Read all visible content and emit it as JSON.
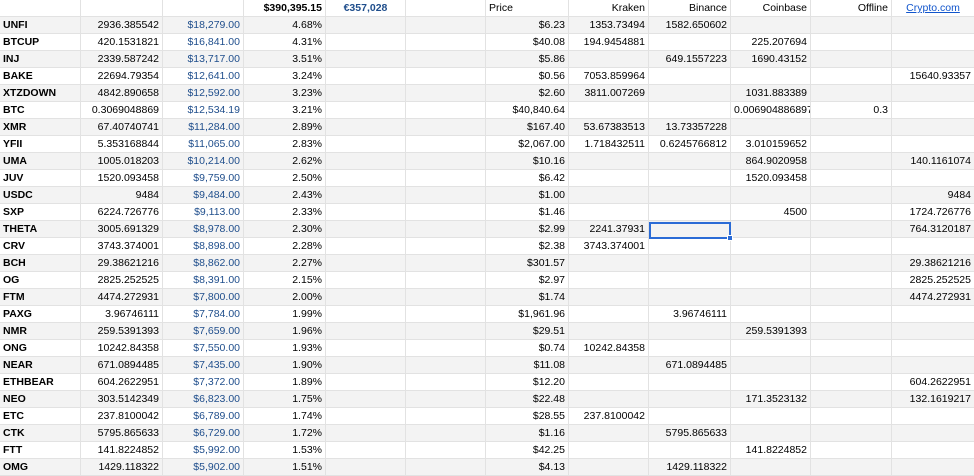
{
  "header": {
    "total_usd": "$390,395.15",
    "total_eur": "€357,028",
    "price": "Price",
    "kraken": "Kraken",
    "binance": "Binance",
    "coinbase": "Coinbase",
    "offline": "Offline",
    "cryptocom": "Crypto.com"
  },
  "rows": [
    {
      "sym": "UNFI",
      "qty": "2936.385542",
      "usd": "$18,279.00",
      "pct": "4.68%",
      "price": "$6.23",
      "kraken": "1353.73494",
      "binance": "1582.650602",
      "coinbase": "",
      "offline": "",
      "cryptocom": ""
    },
    {
      "sym": "BTCUP",
      "qty": "420.1531821",
      "usd": "$16,841.00",
      "pct": "4.31%",
      "price": "$40.08",
      "kraken": "194.9454881",
      "binance": "",
      "coinbase": "225.207694",
      "offline": "",
      "cryptocom": ""
    },
    {
      "sym": "INJ",
      "qty": "2339.587242",
      "usd": "$13,717.00",
      "pct": "3.51%",
      "price": "$5.86",
      "kraken": "",
      "binance": "649.1557223",
      "coinbase": "1690.43152",
      "offline": "",
      "cryptocom": ""
    },
    {
      "sym": "BAKE",
      "qty": "22694.79354",
      "usd": "$12,641.00",
      "pct": "3.24%",
      "price": "$0.56",
      "kraken": "7053.859964",
      "binance": "",
      "coinbase": "",
      "offline": "",
      "cryptocom": "15640.93357"
    },
    {
      "sym": "XTZDOWN",
      "qty": "4842.890658",
      "usd": "$12,592.00",
      "pct": "3.23%",
      "price": "$2.60",
      "kraken": "3811.007269",
      "binance": "",
      "coinbase": "1031.883389",
      "offline": "",
      "cryptocom": ""
    },
    {
      "sym": "BTC",
      "qty": "0.3069048869",
      "usd": "$12,534.19",
      "pct": "3.21%",
      "price": "$40,840.64",
      "kraken": "",
      "binance": "",
      "coinbase": "0.006904886897",
      "offline": "0.3",
      "cryptocom": ""
    },
    {
      "sym": "XMR",
      "qty": "67.40740741",
      "usd": "$11,284.00",
      "pct": "2.89%",
      "price": "$167.40",
      "kraken": "53.67383513",
      "binance": "13.73357228",
      "coinbase": "",
      "offline": "",
      "cryptocom": ""
    },
    {
      "sym": "YFII",
      "qty": "5.353168844",
      "usd": "$11,065.00",
      "pct": "2.83%",
      "price": "$2,067.00",
      "kraken": "1.718432511",
      "binance": "0.6245766812",
      "coinbase": "3.010159652",
      "offline": "",
      "cryptocom": ""
    },
    {
      "sym": "UMA",
      "qty": "1005.018203",
      "usd": "$10,214.00",
      "pct": "2.62%",
      "price": "$10.16",
      "kraken": "",
      "binance": "",
      "coinbase": "864.9020958",
      "offline": "",
      "cryptocom": "140.1161074"
    },
    {
      "sym": "JUV",
      "qty": "1520.093458",
      "usd": "$9,759.00",
      "pct": "2.50%",
      "price": "$6.42",
      "kraken": "",
      "binance": "",
      "coinbase": "1520.093458",
      "offline": "",
      "cryptocom": ""
    },
    {
      "sym": "USDC",
      "qty": "9484",
      "usd": "$9,484.00",
      "pct": "2.43%",
      "price": "$1.00",
      "kraken": "",
      "binance": "",
      "coinbase": "",
      "offline": "",
      "cryptocom": "9484"
    },
    {
      "sym": "SXP",
      "qty": "6224.726776",
      "usd": "$9,113.00",
      "pct": "2.33%",
      "price": "$1.46",
      "kraken": "",
      "binance": "",
      "coinbase": "4500",
      "offline": "",
      "cryptocom": "1724.726776"
    },
    {
      "sym": "THETA",
      "qty": "3005.691329",
      "usd": "$8,978.00",
      "pct": "2.30%",
      "price": "$2.99",
      "kraken": "2241.37931",
      "binance": "",
      "coinbase": "",
      "offline": "",
      "cryptocom": "764.3120187"
    },
    {
      "sym": "CRV",
      "qty": "3743.374001",
      "usd": "$8,898.00",
      "pct": "2.28%",
      "price": "$2.38",
      "kraken": "3743.374001",
      "binance": "",
      "coinbase": "",
      "offline": "",
      "cryptocom": ""
    },
    {
      "sym": "BCH",
      "qty": "29.38621216",
      "usd": "$8,862.00",
      "pct": "2.27%",
      "price": "$301.57",
      "kraken": "",
      "binance": "",
      "coinbase": "",
      "offline": "",
      "cryptocom": "29.38621216"
    },
    {
      "sym": "OG",
      "qty": "2825.252525",
      "usd": "$8,391.00",
      "pct": "2.15%",
      "price": "$2.97",
      "kraken": "",
      "binance": "",
      "coinbase": "",
      "offline": "",
      "cryptocom": "2825.252525"
    },
    {
      "sym": "FTM",
      "qty": "4474.272931",
      "usd": "$7,800.00",
      "pct": "2.00%",
      "price": "$1.74",
      "kraken": "",
      "binance": "",
      "coinbase": "",
      "offline": "",
      "cryptocom": "4474.272931"
    },
    {
      "sym": "PAXG",
      "qty": "3.96746111",
      "usd": "$7,784.00",
      "pct": "1.99%",
      "price": "$1,961.96",
      "kraken": "",
      "binance": "3.96746111",
      "coinbase": "",
      "offline": "",
      "cryptocom": ""
    },
    {
      "sym": "NMR",
      "qty": "259.5391393",
      "usd": "$7,659.00",
      "pct": "1.96%",
      "price": "$29.51",
      "kraken": "",
      "binance": "",
      "coinbase": "259.5391393",
      "offline": "",
      "cryptocom": ""
    },
    {
      "sym": "ONG",
      "qty": "10242.84358",
      "usd": "$7,550.00",
      "pct": "1.93%",
      "price": "$0.74",
      "kraken": "10242.84358",
      "binance": "",
      "coinbase": "",
      "offline": "",
      "cryptocom": ""
    },
    {
      "sym": "NEAR",
      "qty": "671.0894485",
      "usd": "$7,435.00",
      "pct": "1.90%",
      "price": "$11.08",
      "kraken": "",
      "binance": "671.0894485",
      "coinbase": "",
      "offline": "",
      "cryptocom": ""
    },
    {
      "sym": "ETHBEAR",
      "qty": "604.2622951",
      "usd": "$7,372.00",
      "pct": "1.89%",
      "price": "$12.20",
      "kraken": "",
      "binance": "",
      "coinbase": "",
      "offline": "",
      "cryptocom": "604.2622951"
    },
    {
      "sym": "NEO",
      "qty": "303.5142349",
      "usd": "$6,823.00",
      "pct": "1.75%",
      "price": "$22.48",
      "kraken": "",
      "binance": "",
      "coinbase": "171.3523132",
      "offline": "",
      "cryptocom": "132.1619217"
    },
    {
      "sym": "ETC",
      "qty": "237.8100042",
      "usd": "$6,789.00",
      "pct": "1.74%",
      "price": "$28.55",
      "kraken": "237.8100042",
      "binance": "",
      "coinbase": "",
      "offline": "",
      "cryptocom": ""
    },
    {
      "sym": "CTK",
      "qty": "5795.865633",
      "usd": "$6,729.00",
      "pct": "1.72%",
      "price": "$1.16",
      "kraken": "",
      "binance": "5795.865633",
      "coinbase": "",
      "offline": "",
      "cryptocom": ""
    },
    {
      "sym": "FTT",
      "qty": "141.8224852",
      "usd": "$5,992.00",
      "pct": "1.53%",
      "price": "$42.25",
      "kraken": "",
      "binance": "",
      "coinbase": "141.8224852",
      "offline": "",
      "cryptocom": ""
    },
    {
      "sym": "OMG",
      "qty": "1429.118322",
      "usd": "$5,902.00",
      "pct": "1.51%",
      "price": "$4.13",
      "kraken": "",
      "binance": "1429.118322",
      "coinbase": "",
      "offline": "",
      "cryptocom": ""
    }
  ]
}
